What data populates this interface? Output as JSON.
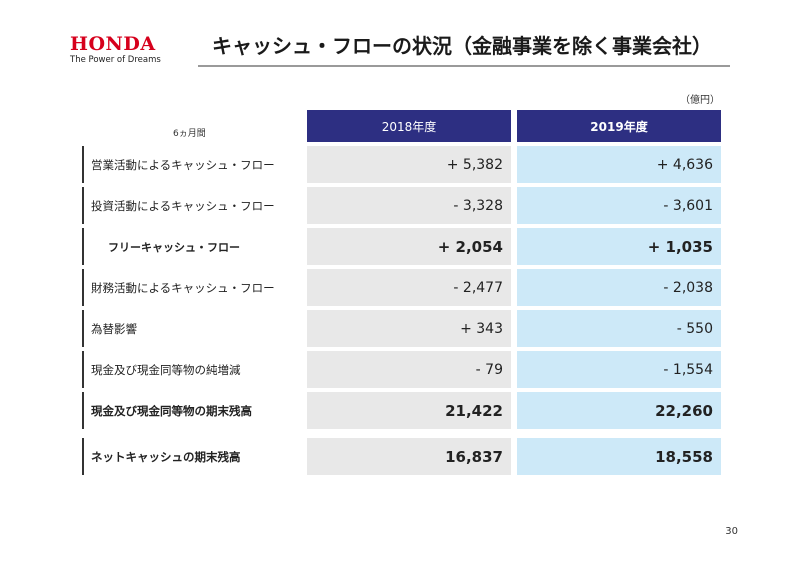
{
  "logo": {
    "wordmark": "HONDA",
    "tagline": "The Power of Dreams"
  },
  "title": "キャッシュ・フローの状況（金融事業を除く事業会社）",
  "unit": "（億円）",
  "period": "6ヵ月間",
  "columns": [
    "2018年度",
    "2019年度"
  ],
  "rows": [
    {
      "label": "営業活動によるキャッシュ・フロー",
      "fy2018": "+ 5,382",
      "fy2019": "+ 4,636"
    },
    {
      "label": "投資活動によるキャッシュ・フロー",
      "fy2018": "- 3,328",
      "fy2019": "- 3,601"
    },
    {
      "label": "フリーキャッシュ・フロー",
      "fy2018": "+ 2,054",
      "fy2019": "+ 1,035"
    },
    {
      "label": "財務活動によるキャッシュ・フロー",
      "fy2018": "- 2,477",
      "fy2019": "- 2,038"
    },
    {
      "label": "為替影響",
      "fy2018": "+ 343",
      "fy2019": "- 550"
    },
    {
      "label": "現金及び現金同等物の純増減",
      "fy2018": "- 79",
      "fy2019": "- 1,554"
    },
    {
      "label": "現金及び現金同等物の期末残高",
      "fy2018": "21,422",
      "fy2019": "22,260"
    },
    {
      "label": "ネットキャッシュの期末残高",
      "fy2018": "16,837",
      "fy2019": "18,558"
    }
  ],
  "page_number": "30",
  "colors": {
    "header": "#2d2f82",
    "brand": "#d6001c",
    "cell_2018": "#e8e8e8",
    "cell_2019": "#cde9f8"
  }
}
